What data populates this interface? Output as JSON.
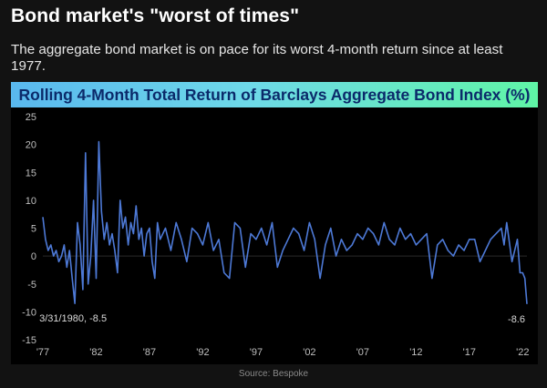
{
  "header": {
    "title": "Bond market's \"worst of times\"",
    "subtitle": "The aggregate bond market is on pace for its worst 4-month return since at least 1977."
  },
  "footer": {
    "source": "Source: Bespoke"
  },
  "colors": {
    "line": "#4d79d6",
    "background": "#000000",
    "page": "#121212",
    "banner_text": "#0b2a6a"
  },
  "chart_data": {
    "type": "line",
    "title": "Rolling 4-Month Total Return of Barclays Aggregate Bond Index (%)",
    "xlabel": "",
    "ylabel": "",
    "xlim": [
      1977,
      2022.4
    ],
    "ylim": [
      -15,
      25
    ],
    "yticks": [
      25,
      20,
      15,
      10,
      5,
      0,
      -5,
      -10,
      -15
    ],
    "xticks": [
      {
        "x": 1977,
        "label": "'77"
      },
      {
        "x": 1982,
        "label": "'82"
      },
      {
        "x": 1987,
        "label": "'87"
      },
      {
        "x": 1992,
        "label": "'92"
      },
      {
        "x": 1997,
        "label": "'97"
      },
      {
        "x": 2002,
        "label": "'02"
      },
      {
        "x": 2007,
        "label": "'07"
      },
      {
        "x": 2012,
        "label": "'12"
      },
      {
        "x": 2017,
        "label": "'17"
      },
      {
        "x": 2022,
        "label": "'22"
      }
    ],
    "grid": false,
    "legend": "none",
    "series": [
      {
        "x": [
          1977.0,
          1977.25,
          1977.5,
          1977.75,
          1978.0,
          1978.25,
          1978.5,
          1978.75,
          1979.0,
          1979.25,
          1979.5,
          1979.75,
          1980.0,
          1980.25,
          1980.5,
          1980.75,
          1981.0,
          1981.25,
          1981.5,
          1981.75,
          1982.0,
          1982.25,
          1982.5,
          1982.75,
          1983.0,
          1983.25,
          1983.5,
          1983.75,
          1984.0,
          1984.25,
          1984.5,
          1984.75,
          1985.0,
          1985.25,
          1985.5,
          1985.75,
          1986.0,
          1986.25,
          1986.5,
          1986.75,
          1987.0,
          1987.25,
          1987.5,
          1987.75,
          1988.0,
          1988.5,
          1989.0,
          1989.5,
          1990.0,
          1990.5,
          1991.0,
          1991.5,
          1992.0,
          1992.5,
          1993.0,
          1993.5,
          1994.0,
          1994.5,
          1995.0,
          1995.5,
          1996.0,
          1996.5,
          1997.0,
          1997.5,
          1998.0,
          1998.5,
          1999.0,
          1999.5,
          2000.0,
          2000.5,
          2001.0,
          2001.5,
          2002.0,
          2002.5,
          2003.0,
          2003.5,
          2004.0,
          2004.5,
          2005.0,
          2005.5,
          2006.0,
          2006.5,
          2007.0,
          2007.5,
          2008.0,
          2008.5,
          2009.0,
          2009.5,
          2010.0,
          2010.5,
          2011.0,
          2011.5,
          2012.0,
          2012.5,
          2013.0,
          2013.5,
          2014.0,
          2014.5,
          2015.0,
          2015.5,
          2016.0,
          2016.5,
          2017.0,
          2017.5,
          2018.0,
          2018.5,
          2019.0,
          2019.5,
          2020.0,
          2020.25,
          2020.5,
          2021.0,
          2021.5,
          2021.75,
          2022.0,
          2022.2,
          2022.4
        ],
        "values": [
          7,
          3,
          1,
          2,
          0,
          1,
          -1,
          0,
          2,
          -2,
          1,
          -4,
          -8.5,
          6,
          2,
          -6,
          18.5,
          -5,
          0,
          10,
          -4,
          20.5,
          8,
          3,
          6,
          2,
          4,
          1,
          -3,
          10,
          5,
          7,
          2,
          6,
          4,
          9,
          3,
          5,
          0,
          4,
          5,
          -1,
          -4,
          6,
          3,
          5,
          1,
          6,
          3,
          -1,
          5,
          4,
          2,
          6,
          1,
          3,
          -3,
          -4,
          6,
          5,
          -2,
          4,
          3,
          5,
          2,
          6,
          -2,
          1,
          3,
          5,
          4,
          1,
          6,
          3,
          -4,
          2,
          5,
          0,
          3,
          1,
          2,
          4,
          3,
          5,
          4,
          2,
          6,
          3,
          2,
          5,
          3,
          4,
          2,
          3,
          4,
          -4,
          2,
          3,
          1,
          0,
          2,
          1,
          3,
          3,
          -1,
          1,
          3,
          4,
          5,
          2,
          6,
          -1,
          3,
          -3,
          -3,
          -4,
          -8.6
        ]
      }
    ],
    "annotations": [
      {
        "x": 1980.0,
        "y": -8.5,
        "text": "3/31/1980, -8.5"
      },
      {
        "x": 2022.4,
        "y": -8.6,
        "text": "-8.6"
      }
    ]
  }
}
